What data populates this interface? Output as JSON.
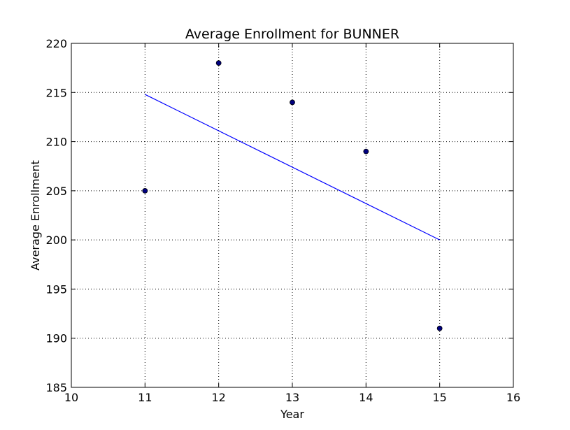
{
  "chart_data": {
    "type": "scatter",
    "title": "Average Enrollment for BUNNER",
    "xlabel": "Year",
    "ylabel": "Average Enrollment",
    "xlim": [
      10,
      16
    ],
    "ylim": [
      185,
      220
    ],
    "xticks": [
      10,
      11,
      12,
      13,
      14,
      15,
      16
    ],
    "yticks": [
      185,
      190,
      195,
      200,
      205,
      210,
      215,
      220
    ],
    "grid": true,
    "points": {
      "x": [
        11,
        12,
        13,
        14,
        15
      ],
      "y": [
        205,
        218,
        214,
        209,
        191
      ],
      "color": "#00007f"
    },
    "trend_line": {
      "x": [
        11,
        15
      ],
      "y": [
        214.8,
        200.0
      ],
      "color": "#0000ff"
    }
  }
}
